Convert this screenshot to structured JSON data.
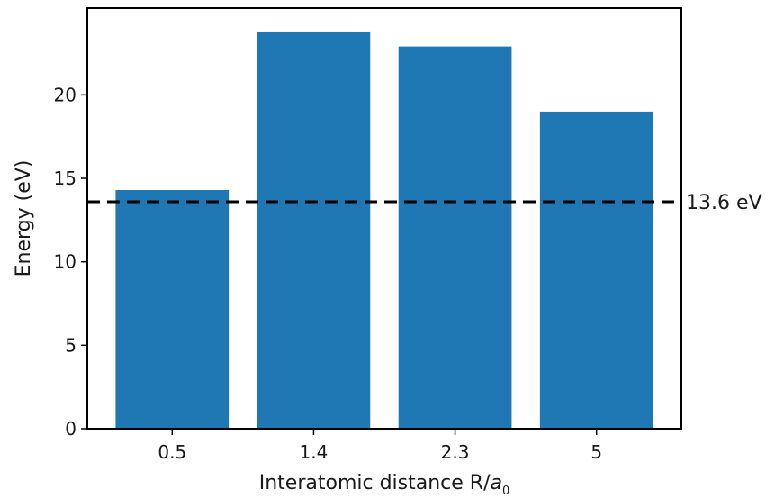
{
  "chart_data": {
    "type": "bar",
    "categories": [
      "0.5",
      "1.4",
      "2.3",
      "5"
    ],
    "values": [
      14.3,
      23.8,
      22.9,
      19.0
    ],
    "xlabel": "Interatomic distance R/a₀",
    "ylabel": "Energy (eV)",
    "ylim": [
      0,
      25.2
    ],
    "yticks": [
      0,
      5,
      10,
      15,
      20
    ],
    "bar_color": "#1f77b4",
    "reference_line": {
      "value": 13.6,
      "label": "13.6 eV",
      "style": "dashed",
      "color": "#000000"
    },
    "grid": false,
    "legend": "none"
  },
  "text": {
    "xlabel_main": "Interatomic distance R/",
    "xlabel_var": "a",
    "xlabel_sub": "0"
  }
}
